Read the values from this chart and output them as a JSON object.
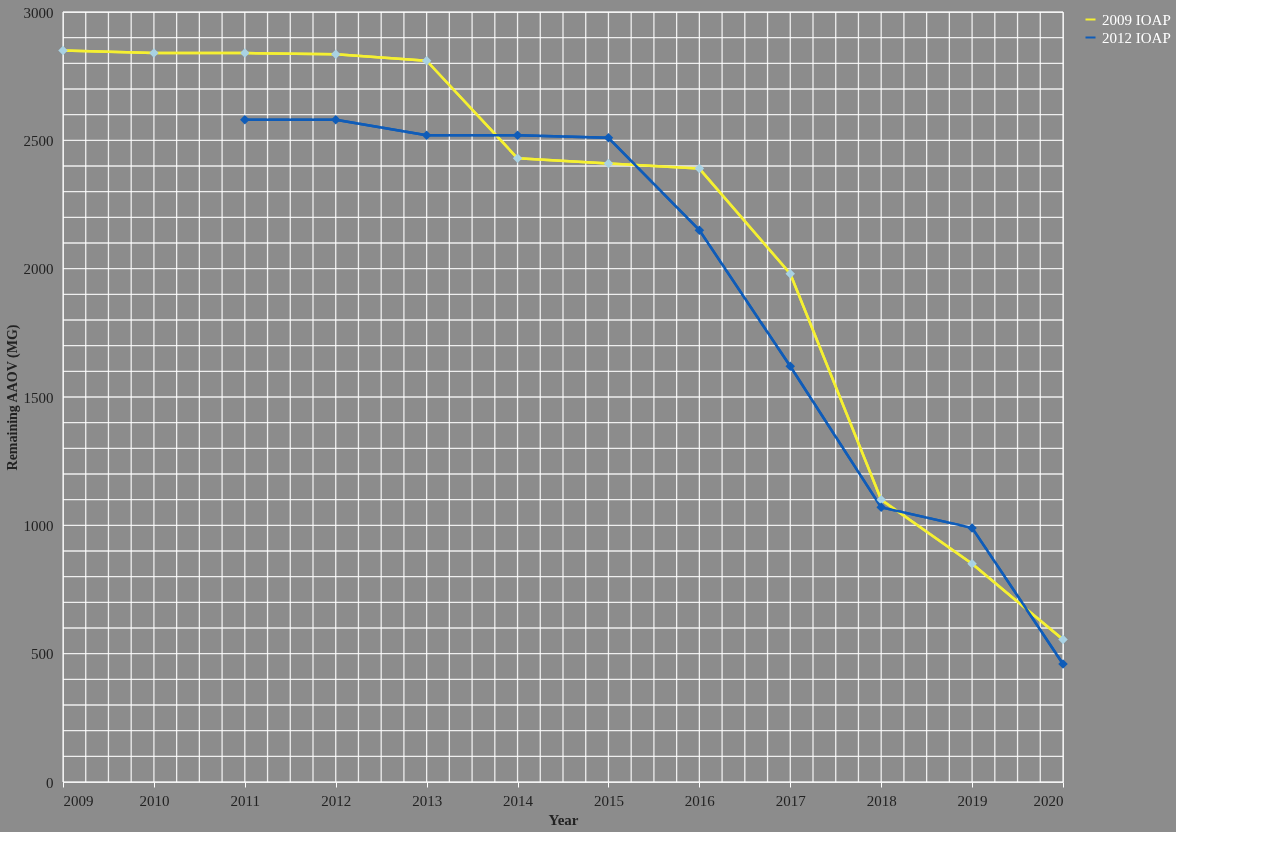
{
  "chart_data": {
    "type": "line",
    "xlabel": "Year",
    "ylabel": "Remaining AAOV (MG)",
    "x": [
      2009,
      2010,
      2011,
      2012,
      2013,
      2014,
      2015,
      2016,
      2017,
      2018,
      2019,
      2020
    ],
    "series": [
      {
        "name": "2009 IOAP",
        "color": "#f5f032",
        "values": [
          2850,
          2840,
          2840,
          2835,
          2810,
          2430,
          2410,
          2390,
          1980,
          1100,
          850,
          555
        ]
      },
      {
        "name": "2012 IOAP",
        "color": "#0f5cb8",
        "values": [
          null,
          null,
          2580,
          2580,
          2520,
          2520,
          2510,
          2150,
          1620,
          1070,
          990,
          460
        ]
      }
    ],
    "xlim": [
      2009,
      2020
    ],
    "xticks": [
      2009,
      {
        "value": 2009.25,
        "label": null
      },
      {
        "value": 2009.5,
        "label": null
      },
      {
        "value": 2009.75,
        "label": null
      },
      2010,
      {
        "value": 2010.25,
        "label": null
      },
      {
        "value": 2010.5,
        "label": null
      },
      {
        "value": 2010.75,
        "label": null
      },
      2011,
      {
        "value": 2011.25,
        "label": null
      },
      {
        "value": 2011.5,
        "label": null
      },
      {
        "value": 2011.75,
        "label": null
      },
      2012,
      {
        "value": 2012.25,
        "label": null
      },
      {
        "value": 2012.5,
        "label": null
      },
      {
        "value": 2012.75,
        "label": null
      },
      2013,
      {
        "value": 2013.25,
        "label": null
      },
      {
        "value": 2013.5,
        "label": null
      },
      {
        "value": 2013.75,
        "label": null
      },
      2014,
      {
        "value": 2014.25,
        "label": null
      },
      {
        "value": 2014.5,
        "label": null
      },
      {
        "value": 2014.75,
        "label": null
      },
      2015,
      {
        "value": 2015.25,
        "label": null
      },
      {
        "value": 2015.5,
        "label": null
      },
      {
        "value": 2015.75,
        "label": null
      },
      2016,
      {
        "value": 2016.25,
        "label": null
      },
      {
        "value": 2016.5,
        "label": null
      },
      {
        "value": 2016.75,
        "label": null
      },
      2017,
      {
        "value": 2017.25,
        "label": null
      },
      {
        "value": 2017.5,
        "label": null
      },
      {
        "value": 2017.75,
        "label": null
      },
      2018,
      {
        "value": 2018.25,
        "label": null
      },
      {
        "value": 2018.5,
        "label": null
      },
      {
        "value": 2018.75,
        "label": null
      },
      2019,
      {
        "value": 2019.25,
        "label": null
      },
      {
        "value": 2019.5,
        "label": null
      },
      {
        "value": 2019.75,
        "label": null
      },
      2020
    ],
    "ylim": [
      0,
      3000
    ],
    "yticks": [
      0,
      {
        "value": 100,
        "label": null
      },
      {
        "value": 200,
        "label": null
      },
      {
        "value": 300,
        "label": null
      },
      {
        "value": 400,
        "label": null
      },
      500,
      {
        "value": 600,
        "label": null
      },
      {
        "value": 700,
        "label": null
      },
      {
        "value": 800,
        "label": null
      },
      {
        "value": 900,
        "label": null
      },
      1000,
      {
        "value": 1100,
        "label": null
      },
      {
        "value": 1200,
        "label": null
      },
      {
        "value": 1300,
        "label": null
      },
      {
        "value": 1400,
        "label": null
      },
      1500,
      {
        "value": 1600,
        "label": null
      },
      {
        "value": 1700,
        "label": null
      },
      {
        "value": 1800,
        "label": null
      },
      {
        "value": 1900,
        "label": null
      },
      2000,
      {
        "value": 2100,
        "label": null
      },
      {
        "value": 2200,
        "label": null
      },
      {
        "value": 2300,
        "label": null
      },
      {
        "value": 2400,
        "label": null
      },
      2500,
      {
        "value": 2600,
        "label": null
      },
      {
        "value": 2700,
        "label": null
      },
      {
        "value": 2800,
        "label": null
      },
      {
        "value": 2900,
        "label": null
      },
      3000
    ],
    "grid": true,
    "legend": "right",
    "marker": "diamond",
    "line_style": "solid"
  }
}
